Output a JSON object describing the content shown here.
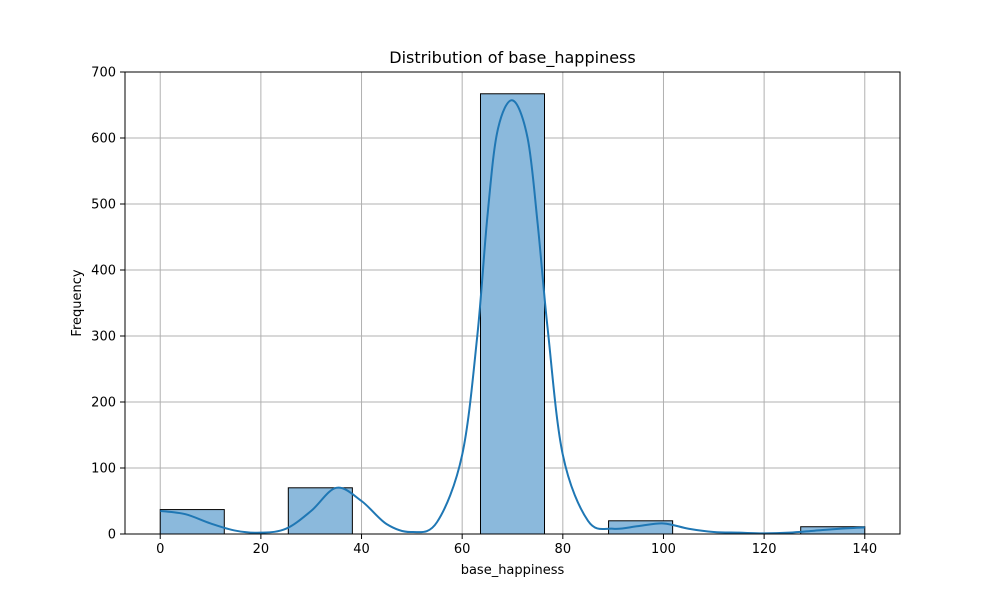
{
  "chart_data": {
    "type": "bar",
    "title": "Distribution of base_happiness",
    "xlabel": "base_happiness",
    "ylabel": "Frequency",
    "xlim": [
      -7,
      147
    ],
    "ylim": [
      0,
      700
    ],
    "xticks": [
      0,
      20,
      40,
      60,
      80,
      100,
      120,
      140
    ],
    "yticks": [
      0,
      100,
      200,
      300,
      400,
      500,
      600,
      700
    ],
    "grid": true,
    "bins": [
      {
        "x0": 0,
        "x1": 12.73,
        "count": 37
      },
      {
        "x0": 12.73,
        "x1": 25.45,
        "count": 0
      },
      {
        "x0": 25.45,
        "x1": 38.18,
        "count": 70
      },
      {
        "x0": 38.18,
        "x1": 50.91,
        "count": 0
      },
      {
        "x0": 50.91,
        "x1": 63.64,
        "count": 0
      },
      {
        "x0": 63.64,
        "x1": 76.36,
        "count": 667
      },
      {
        "x0": 76.36,
        "x1": 89.09,
        "count": 0
      },
      {
        "x0": 89.09,
        "x1": 101.82,
        "count": 20
      },
      {
        "x0": 101.82,
        "x1": 114.55,
        "count": 0
      },
      {
        "x0": 114.55,
        "x1": 127.27,
        "count": 0
      },
      {
        "x0": 127.27,
        "x1": 140,
        "count": 11
      }
    ],
    "kde": {
      "x": [
        0,
        5,
        10,
        15,
        20,
        25,
        30,
        35,
        40,
        45,
        50,
        55,
        60,
        63,
        65,
        67,
        70,
        73,
        75,
        77,
        80,
        85,
        90,
        95,
        100,
        105,
        110,
        115,
        120,
        125,
        130,
        135,
        140
      ],
      "y": [
        35,
        30,
        16,
        5,
        2,
        8,
        35,
        70,
        50,
        15,
        3,
        18,
        120,
        300,
        480,
        610,
        657,
        600,
        470,
        310,
        120,
        20,
        8,
        12,
        16,
        8,
        3,
        2,
        1,
        2,
        5,
        8,
        10
      ]
    },
    "colors": {
      "bar_fill": "#8bb9dc",
      "bar_edge": "#000000",
      "kde_line": "#1f77b4",
      "grid": "#b0b0b0"
    }
  }
}
